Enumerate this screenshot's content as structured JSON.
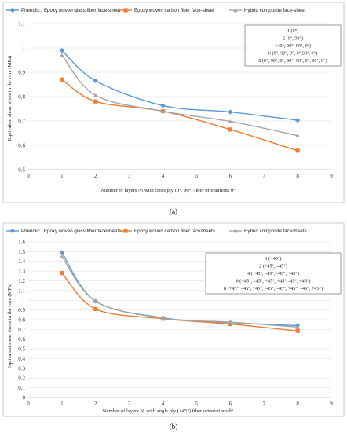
{
  "chart_data": [
    {
      "type": "line",
      "caption": "(a)",
      "xlabel": "Number of layers Nₗ with cross ply (0°, 90°) fiber orientations  θ°",
      "ylabel": "Equivalent  shear stress in the core (MPa)",
      "xlim": [
        0,
        9
      ],
      "ylim": [
        0.5,
        1.1
      ],
      "xticks": [
        0,
        1,
        2,
        3,
        4,
        5,
        6,
        7,
        8,
        9
      ],
      "yticks": [
        0.5,
        0.6,
        0.7,
        0.8,
        0.9,
        1,
        1.1
      ],
      "legend_position": "top",
      "annotation": [
        "1 (0°)",
        "2 (0°, 90°)",
        "4 (0°, 90°, 90°, 0°)",
        "6 (0°, 90°, 0°, 0°,90°, 0°)",
        "8 (0°, 90°, 0°, 90°, 90°, 0°, 90°, 0°)"
      ],
      "series": [
        {
          "name": "Phenolic / Epoxy woven glass fiber face-sheet",
          "color": "#5b9bd5",
          "marker": "diamond",
          "x": [
            1,
            2,
            4,
            6,
            8
          ],
          "values": [
            0.99,
            0.865,
            0.763,
            0.737,
            0.703
          ]
        },
        {
          "name": "Epoxy woven carbon fiber face-sheet",
          "color": "#ed7d31",
          "marker": "square",
          "x": [
            1,
            2,
            4,
            6,
            8
          ],
          "values": [
            0.87,
            0.78,
            0.74,
            0.665,
            0.578
          ]
        },
        {
          "name": "Hybrid composite face-sheet",
          "color": "#a5a5a5",
          "marker": "triangle",
          "x": [
            1,
            2,
            4,
            6,
            8
          ],
          "values": [
            0.97,
            0.805,
            0.74,
            0.698,
            0.64
          ]
        }
      ]
    },
    {
      "type": "line",
      "caption": "(b)",
      "xlabel": "Number of layers Nₗ with angle ply (±45°) fiber orientations  θ°",
      "ylabel": "Equivalent  shear stress in the core (MPa)",
      "xlim": [
        0,
        9
      ],
      "ylim": [
        0,
        1.6
      ],
      "xticks": [
        0,
        1,
        2,
        3,
        4,
        5,
        6,
        7,
        8,
        9
      ],
      "yticks": [
        0,
        0.1,
        0.2,
        0.3,
        0.4,
        0.5,
        0.6,
        0.7,
        0.8,
        0.9,
        1,
        1.1,
        1.2,
        1.3,
        1.4,
        1.5,
        1.6
      ],
      "legend_position": "top",
      "annotation": [
        "1 (+45°)",
        "2 (+45°, –45°)",
        "4 (+45°, –45°, –45°, +45°)",
        "6 (+45°, –45°, +45°, +45°,–45°, +45°)",
        "8 (+45°, –45°, +45°, –45°, –45°, +45°, –45°, +45°)"
      ],
      "series": [
        {
          "name": "Phenolic / Epoxy woven glass fiber facesheets",
          "color": "#5b9bd5",
          "marker": "diamond",
          "x": [
            1,
            2,
            4,
            6,
            8
          ],
          "values": [
            1.49,
            0.99,
            0.82,
            0.77,
            0.74
          ]
        },
        {
          "name": "Epoxy woven carbon fiber facesheets",
          "color": "#ed7d31",
          "marker": "square",
          "x": [
            1,
            2,
            4,
            6,
            8
          ],
          "values": [
            1.28,
            0.91,
            0.81,
            0.755,
            0.685
          ]
        },
        {
          "name": "Hybrid composite facesheets",
          "color": "#a5a5a5",
          "marker": "triangle",
          "x": [
            1,
            2,
            4,
            6,
            8
          ],
          "values": [
            1.45,
            0.99,
            0.815,
            0.775,
            0.725
          ]
        }
      ]
    }
  ]
}
